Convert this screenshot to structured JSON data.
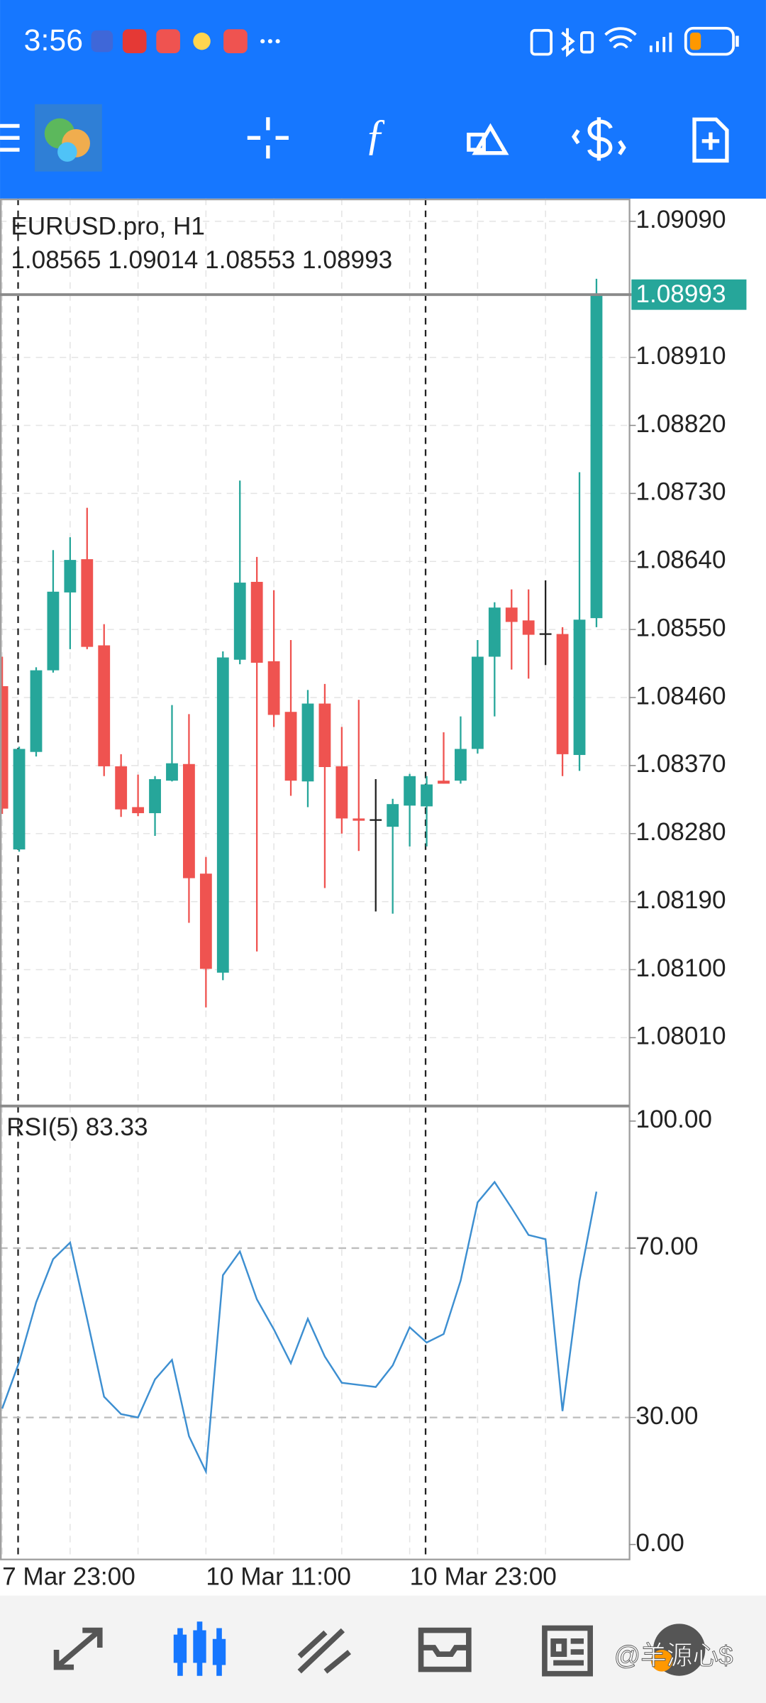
{
  "status_bar": {
    "time": "3:56"
  },
  "chart_data": [
    {
      "type": "candlestick",
      "title": "EURUSD.pro, H1",
      "subtitle": "1.08565 1.09014 1.08553 1.08993",
      "categories": [
        "7 Mar 23:00",
        null,
        null,
        null,
        null,
        null,
        null,
        null,
        null,
        null,
        null,
        null,
        "10 Mar 11:00",
        null,
        null,
        null,
        null,
        null,
        null,
        null,
        null,
        null,
        null,
        null,
        "10 Mar 23:00",
        null,
        null,
        null,
        null,
        null,
        null,
        null,
        null,
        null,
        null,
        null
      ],
      "open": [
        1.08475,
        1.08259,
        1.08388,
        1.08496,
        1.08599,
        1.08643,
        1.08529,
        1.08369,
        1.08315,
        1.08307,
        1.0835,
        1.08372,
        1.08227,
        1.08096,
        1.0851,
        1.08613,
        1.08508,
        1.08441,
        1.08349,
        1.08452,
        1.08369,
        1.083,
        1.08299,
        1.08289,
        1.08317,
        1.08316,
        1.0835,
        1.0835,
        1.08392,
        1.08514,
        1.08579,
        1.08562,
        1.08545,
        1.08544,
        1.08384,
        1.08565
      ],
      "high": [
        1.08514,
        1.08395,
        1.085,
        1.08655,
        1.08672,
        1.08711,
        1.08557,
        1.08385,
        1.08358,
        1.08356,
        1.0845,
        1.08438,
        1.08249,
        1.08521,
        1.08747,
        1.08646,
        1.08602,
        1.08536,
        1.0847,
        1.08478,
        1.08421,
        1.08457,
        1.08352,
        1.08326,
        1.08359,
        1.08356,
        1.08414,
        1.08435,
        1.08536,
        1.08586,
        1.08603,
        1.08603,
        1.08615,
        1.08553,
        1.08758,
        1.09014
      ],
      "low": [
        1.08306,
        1.08256,
        1.08382,
        1.08493,
        1.08524,
        1.08524,
        1.08356,
        1.08302,
        1.08303,
        1.08277,
        1.08349,
        1.08162,
        1.0805,
        1.08086,
        1.08504,
        1.08124,
        1.08421,
        1.0833,
        1.08315,
        1.08208,
        1.0828,
        1.08257,
        1.08177,
        1.08174,
        1.08263,
        1.08263,
        1.08346,
        1.08346,
        1.08386,
        1.08435,
        1.08497,
        1.08485,
        1.08503,
        1.08356,
        1.08363,
        1.08553
      ],
      "close": [
        1.08313,
        1.08392,
        1.08496,
        1.086,
        1.08642,
        1.08527,
        1.08369,
        1.08312,
        1.08307,
        1.08352,
        1.08373,
        1.08221,
        1.08101,
        1.08513,
        1.08612,
        1.08506,
        1.08437,
        1.0835,
        1.08452,
        1.08368,
        1.083,
        1.08297,
        1.08299,
        1.08319,
        1.08356,
        1.08345,
        1.08346,
        1.08392,
        1.08514,
        1.08579,
        1.0856,
        1.08543,
        1.08545,
        1.08385,
        1.08563,
        1.08993
      ],
      "up_color": "#26a69a",
      "down_color": "#ef5350",
      "flat_color": "#222222",
      "last_price": {
        "value": 1.08993,
        "label": "1.08993"
      },
      "ylim": [
        1.07921,
        1.0912
      ],
      "yticks": [
        {
          "value": 1.0801,
          "label": "1.08010"
        },
        {
          "value": 1.081,
          "label": "1.08100"
        },
        {
          "value": 1.0819,
          "label": "1.08190"
        },
        {
          "value": 1.0828,
          "label": "1.08280"
        },
        {
          "value": 1.0837,
          "label": "1.08370"
        },
        {
          "value": 1.0846,
          "label": "1.08460"
        },
        {
          "value": 1.0855,
          "label": "1.08550"
        },
        {
          "value": 1.0864,
          "label": "1.08640"
        },
        {
          "value": 1.0873,
          "label": "1.08730"
        },
        {
          "value": 1.0882,
          "label": "1.08820"
        },
        {
          "value": 1.0891,
          "label": "1.08910"
        },
        {
          "value": 1.0909,
          "label": "1.09090"
        }
      ],
      "grid": true
    },
    {
      "type": "line",
      "title": "RSI(5) 83.33",
      "values": [
        32.1,
        43.1,
        57.2,
        67.4,
        71.3,
        53.3,
        34.9,
        30.8,
        30.0,
        39.0,
        43.6,
        25.6,
        17.2,
        63.6,
        69.2,
        57.9,
        50.8,
        42.8,
        53.3,
        44.4,
        38.2,
        37.7,
        37.2,
        42.3,
        51.3,
        47.7,
        49.7,
        62.3,
        80.8,
        85.6,
        79.5,
        73.1,
        72.1,
        31.5,
        62.3,
        83.33
      ],
      "color": "#3d8fd1",
      "ylim": [
        -3.6,
        103.3
      ],
      "yticks": [
        {
          "value": 0,
          "label": "0.00"
        },
        {
          "value": 30,
          "label": "30.00"
        },
        {
          "value": 70,
          "label": "70.00"
        },
        {
          "value": 100,
          "label": "100.00"
        }
      ]
    }
  ],
  "watermark": "@羊源心$"
}
